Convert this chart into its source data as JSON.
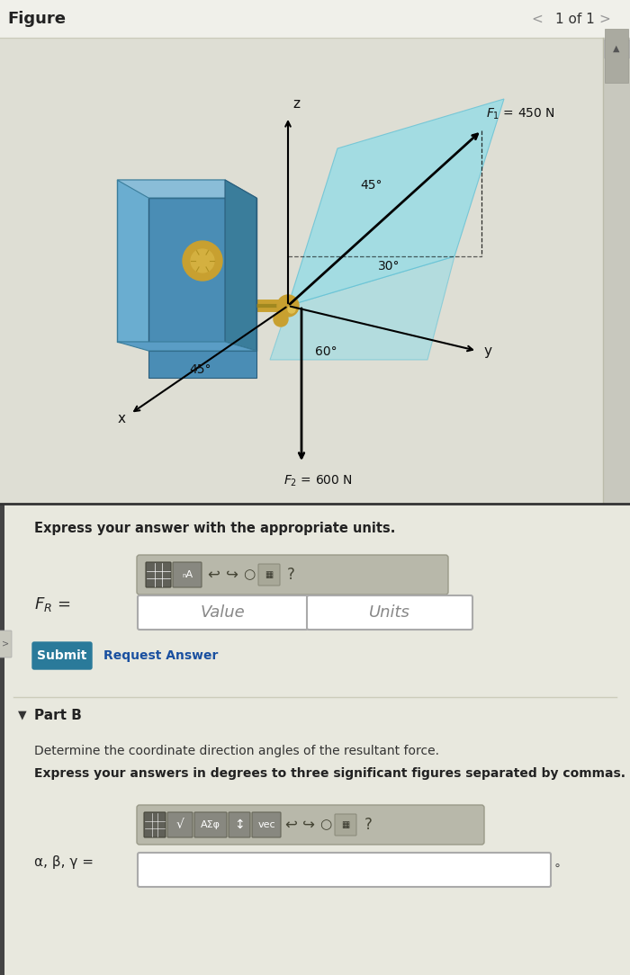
{
  "fig_title": "Figure",
  "nav_text": "1 of 1",
  "bg_top": "#eeeee8",
  "bg_bottom": "#e8e8de",
  "fig_area_bg": "#deded4",
  "express_answer_text": "Express your answer with the appropriate units.",
  "fr_label": "F_R =",
  "value_placeholder": "Value",
  "units_placeholder": "Units",
  "submit_text": "Submit",
  "request_answer_text": "Request Answer",
  "part_b_text": "Part B",
  "determine_text": "Determine the coordinate direction angles of the resultant force.",
  "express_degrees_text": "Express your answers in degrees to three significant figures separated by commas.",
  "alpha_beta_gamma_label": "α, β, γ =",
  "F1_label": "$F_1$ = 450 N",
  "F2_label": "$F_2$ = 600 N",
  "angle_45_1": "45°",
  "angle_45_2": "45°",
  "angle_30": "30°",
  "angle_60": "60°",
  "x_label": "x",
  "y_label": "y",
  "z_label": "z",
  "cyan_color": "#90dce8",
  "box_color_front": "#4a8db5",
  "box_color_side": "#6aadd0",
  "box_color_top": "#8abdd8",
  "gold_color": "#c8a030",
  "submit_bg": "#2a7a9a",
  "link_color": "#1a50a0",
  "scrollbar_bg": "#c8c8be",
  "scrollbar_thumb": "#aaaaA0",
  "toolbar_bg": "#b8b8aa",
  "icon_bg_dark": "#606058",
  "icon_bg_med": "#888880",
  "border_color": "#bbbbaa",
  "input_border": "#aaaaaa",
  "sep_line_color": "#333333",
  "header_bg": "#f0f0ea"
}
